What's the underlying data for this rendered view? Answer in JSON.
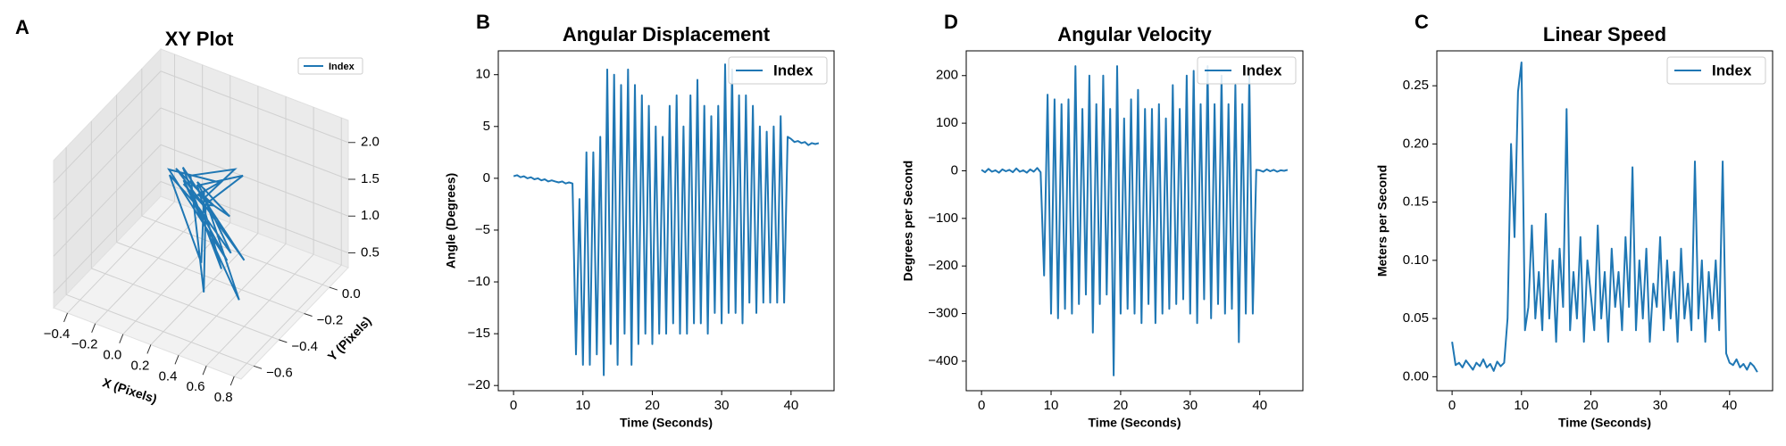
{
  "chart_data": [
    {
      "type": "line3d",
      "panel_label": "A",
      "title": "XY Plot",
      "xlabel": "X (Pixels)",
      "ylabel": "Y (Pixels)",
      "legend": "upper right",
      "xlim": [
        -0.5,
        0.85
      ],
      "ylim": [
        -0.7,
        0.15
      ],
      "zlim": [
        0.3,
        2.3
      ],
      "xticks": [
        {
          "value": -0.4,
          "label": "−0.4"
        },
        {
          "value": -0.2,
          "label": "−0.2"
        },
        {
          "value": 0,
          "label": "0.0"
        },
        0.2,
        0.4,
        0.6,
        0.8
      ],
      "yticks": [
        {
          "value": -0.6,
          "label": "−0.6"
        },
        {
          "value": -0.4,
          "label": "−0.4"
        },
        {
          "value": -0.2,
          "label": "−0.2"
        },
        {
          "value": 0,
          "label": "0.0"
        }
      ],
      "zticks": [
        0.5,
        {
          "value": 1,
          "label": "1.0"
        },
        1.5,
        {
          "value": 2,
          "label": "2.0"
        }
      ],
      "series": [
        {
          "name": "Index",
          "color": "#1f77b4",
          "x": [
            -0.1,
            0.0,
            -0.2,
            0.1,
            -0.3,
            0.2,
            0.0,
            0.5,
            -0.1,
            0.3,
            -0.25,
            0.6,
            0.05,
            0.4,
            -0.15,
            0.35,
            0.0,
            0.7,
            -0.2,
            0.25,
            -0.35,
            0.15,
            -0.05,
            0.45,
            -0.1,
            0.55,
            0.0,
            -0.3,
            0.2,
            -0.05
          ],
          "y": [
            -0.05,
            -0.1,
            0.0,
            -0.15,
            0.05,
            -0.2,
            -0.05,
            -0.3,
            0.0,
            -0.25,
            0.05,
            -0.4,
            -0.1,
            -0.5,
            0.0,
            -0.2,
            -0.05,
            -0.55,
            0.0,
            -0.15,
            0.05,
            -0.1,
            -0.05,
            -0.35,
            0.0,
            -0.45,
            -0.1,
            0.0,
            -0.3,
            0.0
          ],
          "z": [
            1.0,
            1.05,
            0.95,
            1.1,
            1.0,
            1.3,
            0.9,
            2.1,
            1.0,
            0.6,
            1.05,
            1.2,
            1.0,
            0.8,
            1.1,
            1.9,
            1.0,
            1.0,
            1.0,
            0.5,
            0.95,
            1.4,
            1.0,
            1.6,
            1.05,
            1.35,
            0.95,
            1.0,
            0.7,
            1.0
          ]
        }
      ]
    },
    {
      "type": "line",
      "panel_label": "B",
      "title": "Angular Displacement",
      "xlabel": "Time (Seconds)",
      "ylabel": "Angle (Degrees)",
      "legend": "upper right",
      "xlim": [
        -2.2,
        46.2
      ],
      "ylim": [
        -20.5,
        12.3
      ],
      "xticks": [
        0,
        10,
        20,
        30,
        40
      ],
      "yticks": [
        {
          "value": -20,
          "label": "−20"
        },
        {
          "value": -15,
          "label": "−15"
        },
        {
          "value": -10,
          "label": "−10"
        },
        {
          "value": -5,
          "label": "−5"
        },
        0,
        5,
        10
      ],
      "x": [
        0,
        0.5,
        1,
        1.5,
        2,
        2.5,
        3,
        3.5,
        4,
        4.5,
        5,
        5.5,
        6,
        6.5,
        7,
        7.5,
        8,
        8.5,
        9,
        9.5,
        10,
        10.5,
        11,
        11.5,
        12,
        12.5,
        13,
        13.5,
        14,
        14.5,
        15,
        15.5,
        16,
        16.5,
        17,
        17.5,
        18,
        18.5,
        19,
        19.5,
        20,
        20.5,
        21,
        21.5,
        22,
        22.5,
        23,
        23.5,
        24,
        24.5,
        25,
        25.5,
        26,
        26.5,
        27,
        27.5,
        28,
        28.5,
        29,
        29.5,
        30,
        30.5,
        31,
        31.5,
        32,
        32.5,
        33,
        33.5,
        34,
        34.5,
        35,
        35.5,
        36,
        36.5,
        37,
        37.5,
        38,
        38.5,
        39,
        39.5,
        40,
        40.5,
        41,
        41.5,
        42,
        42.5,
        43,
        43.5,
        44
      ],
      "series": [
        {
          "name": "Index",
          "color": "#1f77b4",
          "values": [
            0.2,
            0.3,
            0.1,
            0.2,
            0,
            0.1,
            -0.1,
            0,
            -0.2,
            -0.1,
            -0.3,
            -0.2,
            -0.3,
            -0.4,
            -0.3,
            -0.5,
            -0.4,
            -0.5,
            -17,
            -2,
            -18,
            2.5,
            -18,
            2.5,
            -17,
            4,
            -19,
            10.5,
            -16,
            10,
            -18,
            9,
            -15,
            10.5,
            -18,
            9,
            -16,
            8,
            -15,
            7,
            -16,
            5,
            -15,
            4,
            -15,
            7,
            -14,
            8,
            -15,
            5,
            -15,
            8,
            -14,
            9.5,
            -14,
            7,
            -15,
            6,
            -13,
            7,
            -14,
            11,
            -13,
            10.5,
            -13,
            8,
            -14,
            8,
            -12,
            7,
            -13,
            5,
            -12,
            4.5,
            -12,
            5,
            -12,
            6,
            -12,
            4,
            3.8,
            3.5,
            3.6,
            3.4,
            3.5,
            3.2,
            3.4,
            3.3,
            3.4
          ]
        }
      ]
    },
    {
      "type": "line",
      "panel_label": "D",
      "title": "Angular Velocity",
      "xlabel": "Time (Seconds)",
      "ylabel": "Degrees per Second",
      "legend": "upper right",
      "xlim": [
        -2.2,
        46.2
      ],
      "ylim": [
        -462,
        252
      ],
      "xticks": [
        0,
        10,
        20,
        30,
        40
      ],
      "yticks": [
        {
          "value": -400,
          "label": "−400"
        },
        {
          "value": -300,
          "label": "−300"
        },
        {
          "value": -200,
          "label": "−200"
        },
        {
          "value": -100,
          "label": "−100"
        },
        0,
        100,
        200
      ],
      "x": [
        0,
        0.5,
        1,
        1.5,
        2,
        2.5,
        3,
        3.5,
        4,
        4.5,
        5,
        5.5,
        6,
        6.5,
        7,
        7.5,
        8,
        8.5,
        9,
        9.5,
        10,
        10.5,
        11,
        11.5,
        12,
        12.5,
        13,
        13.5,
        14,
        14.5,
        15,
        15.5,
        16,
        16.5,
        17,
        17.5,
        18,
        18.5,
        19,
        19.5,
        20,
        20.5,
        21,
        21.5,
        22,
        22.5,
        23,
        23.5,
        24,
        24.5,
        25,
        25.5,
        26,
        26.5,
        27,
        27.5,
        28,
        28.5,
        29,
        29.5,
        30,
        30.5,
        31,
        31.5,
        32,
        32.5,
        33,
        33.5,
        34,
        34.5,
        35,
        35.5,
        36,
        36.5,
        37,
        37.5,
        38,
        38.5,
        39,
        39.5,
        40,
        40.5,
        41,
        41.5,
        42,
        42.5,
        43,
        43.5,
        44
      ],
      "series": [
        {
          "name": "Index",
          "color": "#1f77b4",
          "values": [
            2,
            -3,
            4,
            -2,
            1,
            -4,
            3,
            -1,
            2,
            -3,
            5,
            -2,
            1,
            -4,
            3,
            -2,
            6,
            -3,
            -220,
            160,
            -300,
            150,
            -310,
            140,
            -290,
            150,
            -300,
            220,
            -280,
            130,
            -260,
            200,
            -340,
            140,
            -280,
            200,
            -260,
            130,
            -430,
            220,
            -300,
            110,
            -290,
            150,
            -300,
            170,
            -320,
            130,
            -280,
            130,
            -320,
            140,
            -300,
            110,
            -290,
            180,
            -280,
            130,
            -270,
            200,
            -300,
            210,
            -320,
            140,
            -270,
            220,
            -310,
            140,
            -280,
            200,
            -300,
            140,
            -290,
            180,
            -360,
            140,
            -300,
            200,
            -300,
            2,
            1,
            -2,
            3,
            -1,
            2,
            -2,
            1,
            0,
            2
          ]
        }
      ]
    },
    {
      "type": "line",
      "panel_label": "C",
      "title": "Linear Speed",
      "xlabel": "Time (Seconds)",
      "ylabel": "Meters per Second",
      "legend": "upper right",
      "xlim": [
        -2.2,
        46.2
      ],
      "ylim": [
        -0.012,
        0.28
      ],
      "xticks": [
        0,
        10,
        20,
        30,
        40
      ],
      "yticks": [
        {
          "value": 0,
          "label": "0.00"
        },
        0.05,
        {
          "value": 0.1,
          "label": "0.10"
        },
        0.15,
        {
          "value": 0.2,
          "label": "0.20"
        },
        0.25
      ],
      "x": [
        0,
        0.5,
        1,
        1.5,
        2,
        2.5,
        3,
        3.5,
        4,
        4.5,
        5,
        5.5,
        6,
        6.5,
        7,
        7.5,
        8,
        8.5,
        9,
        9.5,
        10,
        10.5,
        11,
        11.5,
        12,
        12.5,
        13,
        13.5,
        14,
        14.5,
        15,
        15.5,
        16,
        16.5,
        17,
        17.5,
        18,
        18.5,
        19,
        19.5,
        20,
        20.5,
        21,
        21.5,
        22,
        22.5,
        23,
        23.5,
        24,
        24.5,
        25,
        25.5,
        26,
        26.5,
        27,
        27.5,
        28,
        28.5,
        29,
        29.5,
        30,
        30.5,
        31,
        31.5,
        32,
        32.5,
        33,
        33.5,
        34,
        34.5,
        35,
        35.5,
        36,
        36.5,
        37,
        37.5,
        38,
        38.5,
        39,
        39.5,
        40,
        40.5,
        41,
        41.5,
        42,
        42.5,
        43,
        43.5,
        44
      ],
      "series": [
        {
          "name": "Index",
          "color": "#1f77b4",
          "values": [
            0.03,
            0.01,
            0.012,
            0.008,
            0.014,
            0.01,
            0.006,
            0.012,
            0.009,
            0.015,
            0.008,
            0.011,
            0.005,
            0.013,
            0.009,
            0.012,
            0.05,
            0.2,
            0.12,
            0.245,
            0.27,
            0.04,
            0.06,
            0.13,
            0.05,
            0.09,
            0.04,
            0.14,
            0.05,
            0.1,
            0.03,
            0.11,
            0.06,
            0.23,
            0.04,
            0.09,
            0.05,
            0.12,
            0.03,
            0.1,
            0.07,
            0.04,
            0.13,
            0.05,
            0.09,
            0.03,
            0.11,
            0.06,
            0.09,
            0.04,
            0.12,
            0.06,
            0.18,
            0.04,
            0.1,
            0.05,
            0.11,
            0.03,
            0.08,
            0.06,
            0.12,
            0.04,
            0.1,
            0.05,
            0.09,
            0.03,
            0.11,
            0.05,
            0.08,
            0.04,
            0.185,
            0.05,
            0.1,
            0.03,
            0.09,
            0.05,
            0.1,
            0.04,
            0.185,
            0.02,
            0.012,
            0.01,
            0.015,
            0.008,
            0.011,
            0.006,
            0.012,
            0.009,
            0.004
          ]
        }
      ]
    }
  ]
}
